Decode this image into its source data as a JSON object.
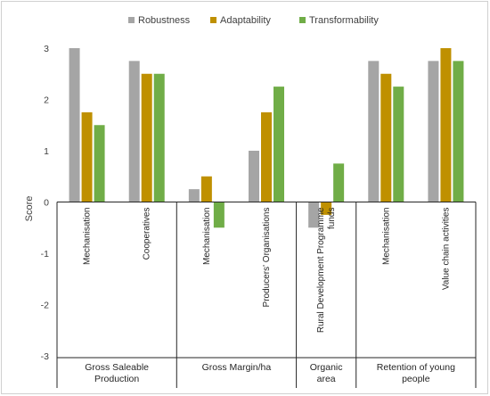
{
  "chart_data": {
    "type": "bar",
    "ylabel": "Score",
    "ylim": [
      -3,
      3
    ],
    "yticks": [
      3,
      2,
      1,
      0,
      -1,
      -2,
      -3
    ],
    "legend_position": "top",
    "categories": [
      "Mechanisation",
      "Cooperatives",
      "Mechanisation",
      "Producers' Organisations",
      "Rural Development Programme funds",
      "Mechanisation",
      "Value chain activities"
    ],
    "groups": [
      {
        "label": "Gross Saleable Production",
        "categories": [
          0,
          1
        ]
      },
      {
        "label": "Gross Margin/ha",
        "categories": [
          2,
          3
        ]
      },
      {
        "label": "Organic area",
        "categories": [
          4
        ]
      },
      {
        "label": "Retention of young people",
        "categories": [
          5,
          6
        ]
      }
    ],
    "series": [
      {
        "name": "Robustness",
        "color": "#a5a5a5",
        "values": [
          3,
          2.75,
          0.25,
          1,
          -0.5,
          2.75,
          2.75
        ]
      },
      {
        "name": "Adaptability",
        "color": "#bf9000",
        "values": [
          1.75,
          2.5,
          0.5,
          1.75,
          -0.25,
          2.5,
          3
        ]
      },
      {
        "name": "Transformability",
        "color": "#70ad47",
        "values": [
          1.5,
          2.5,
          -0.5,
          2.25,
          0.75,
          2.25,
          2.75
        ]
      }
    ]
  }
}
